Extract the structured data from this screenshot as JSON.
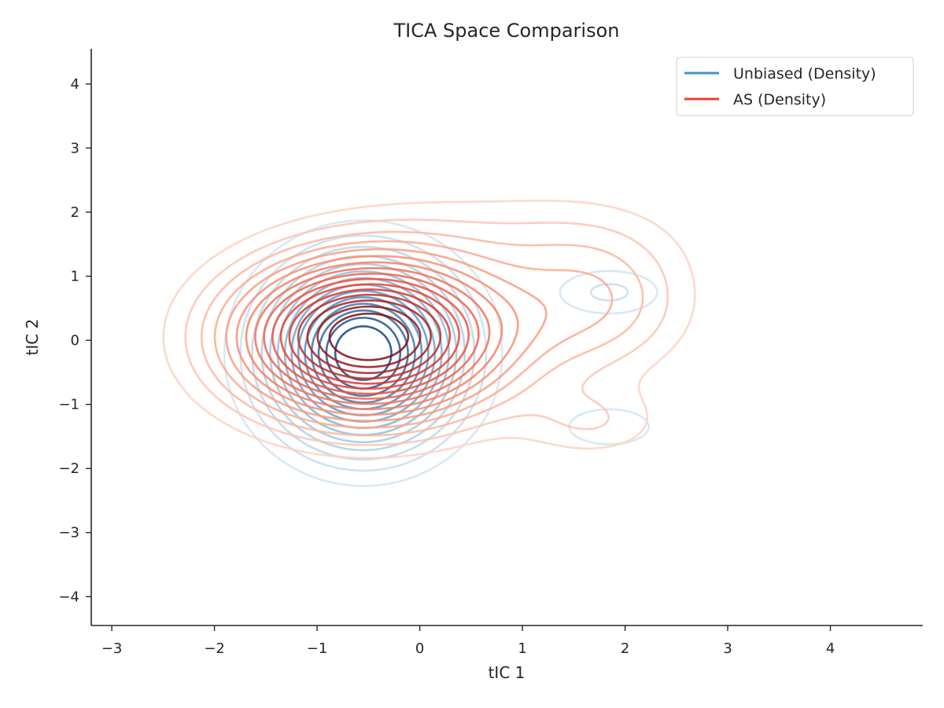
{
  "chart_data": {
    "type": "contour",
    "title": "TICA Space Comparison",
    "xlabel": "tIC 1",
    "ylabel": "tIC 2",
    "xlim": [
      -3.2,
      4.9
    ],
    "ylim": [
      -4.45,
      4.55
    ],
    "xticks": [
      -3,
      -2,
      -1,
      0,
      1,
      2,
      3,
      4
    ],
    "xtick_labels": [
      "−3",
      "−2",
      "−1",
      "0",
      "1",
      "2",
      "3",
      "4"
    ],
    "yticks": [
      -4,
      -3,
      -2,
      -1,
      0,
      1,
      2,
      3,
      4
    ],
    "ytick_labels": [
      "−4",
      "−3",
      "−2",
      "−1",
      "0",
      "1",
      "2",
      "3",
      "4"
    ],
    "grid": false,
    "legend": {
      "placement": "top-right",
      "entries": [
        {
          "label": "Unbiased (Density)",
          "color": "#4292c6"
        },
        {
          "label": "AS (Density)",
          "color": "#ef3b2c"
        }
      ]
    },
    "series": [
      {
        "name": "Unbiased (Density)",
        "colormap": "Blues",
        "levels": 14,
        "components": [
          {
            "center": [
              -0.55,
              -0.2
            ],
            "sigma": [
              0.62,
              0.95
            ],
            "weight": 1.0
          },
          {
            "center": [
              1.85,
              0.75
            ],
            "sigma": [
              0.42,
              0.3
            ],
            "weight": 0.17
          },
          {
            "center": [
              1.85,
              -1.35
            ],
            "sigma": [
              0.42,
              0.3
            ],
            "weight": 0.14
          }
        ]
      },
      {
        "name": "AS (Density)",
        "colormap": "Reds",
        "levels": 16,
        "components": [
          {
            "center": [
              -0.5,
              0.05
            ],
            "sigma": [
              0.9,
              0.85
            ],
            "weight": 1.0
          },
          {
            "center": [
              1.75,
              0.6
            ],
            "sigma": [
              0.65,
              0.8
            ],
            "weight": 0.22
          },
          {
            "center": [
              1.7,
              -1.3
            ],
            "sigma": [
              0.5,
              0.4
            ],
            "weight": 0.12
          },
          {
            "center": [
              0.9,
              1.7
            ],
            "sigma": [
              1.1,
              0.6
            ],
            "weight": 0.08
          }
        ]
      }
    ]
  },
  "colors": {
    "axis": "#262626",
    "blues": [
      "#deebf7",
      "#9ecae1",
      "#4292c6",
      "#08306b"
    ],
    "reds": [
      "#fee0d2",
      "#fc9272",
      "#ef3b2c",
      "#67000d"
    ]
  }
}
